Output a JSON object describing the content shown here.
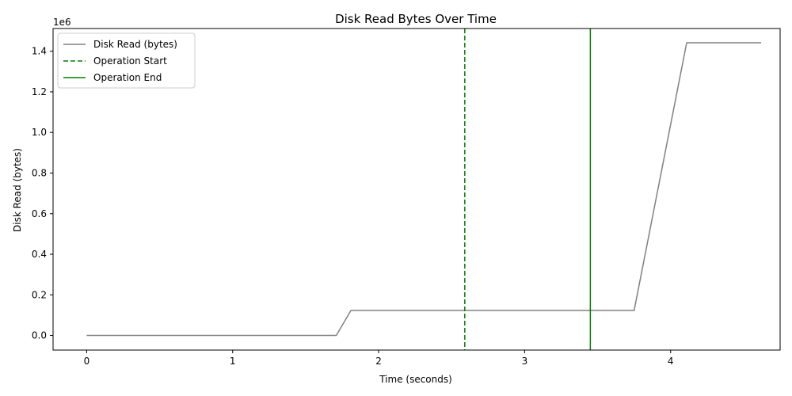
{
  "chart_data": {
    "type": "line",
    "title": "Disk Read Bytes Over Time",
    "xlabel": "Time (seconds)",
    "ylabel": "Disk Read (bytes)",
    "y_offset_text": "1e6",
    "xlim": [
      -0.23,
      4.75
    ],
    "ylim": [
      -72000,
      1512000
    ],
    "x_ticks": [
      0,
      1,
      2,
      3,
      4
    ],
    "x_tick_labels": [
      "0",
      "1",
      "2",
      "3",
      "4"
    ],
    "y_ticks": [
      0,
      200000,
      400000,
      600000,
      800000,
      1000000,
      1200000,
      1400000
    ],
    "y_tick_labels": [
      "0.0",
      "0.2",
      "0.4",
      "0.6",
      "0.8",
      "1.0",
      "1.2",
      "1.4"
    ],
    "grid": false,
    "legend_position": "upper-left",
    "series": [
      {
        "name": "Disk Read (bytes)",
        "color": "#808080",
        "style": "solid",
        "x": [
          0.0,
          1.71,
          1.81,
          3.75,
          4.11,
          4.62
        ],
        "y": [
          0,
          0,
          122880,
          122880,
          1441792,
          1441792
        ]
      }
    ],
    "vlines": [
      {
        "name": "Operation Start",
        "x": 2.59,
        "color": "#008000",
        "style": "dashed"
      },
      {
        "name": "Operation End",
        "x": 3.45,
        "color": "#008000",
        "style": "solid"
      }
    ]
  }
}
